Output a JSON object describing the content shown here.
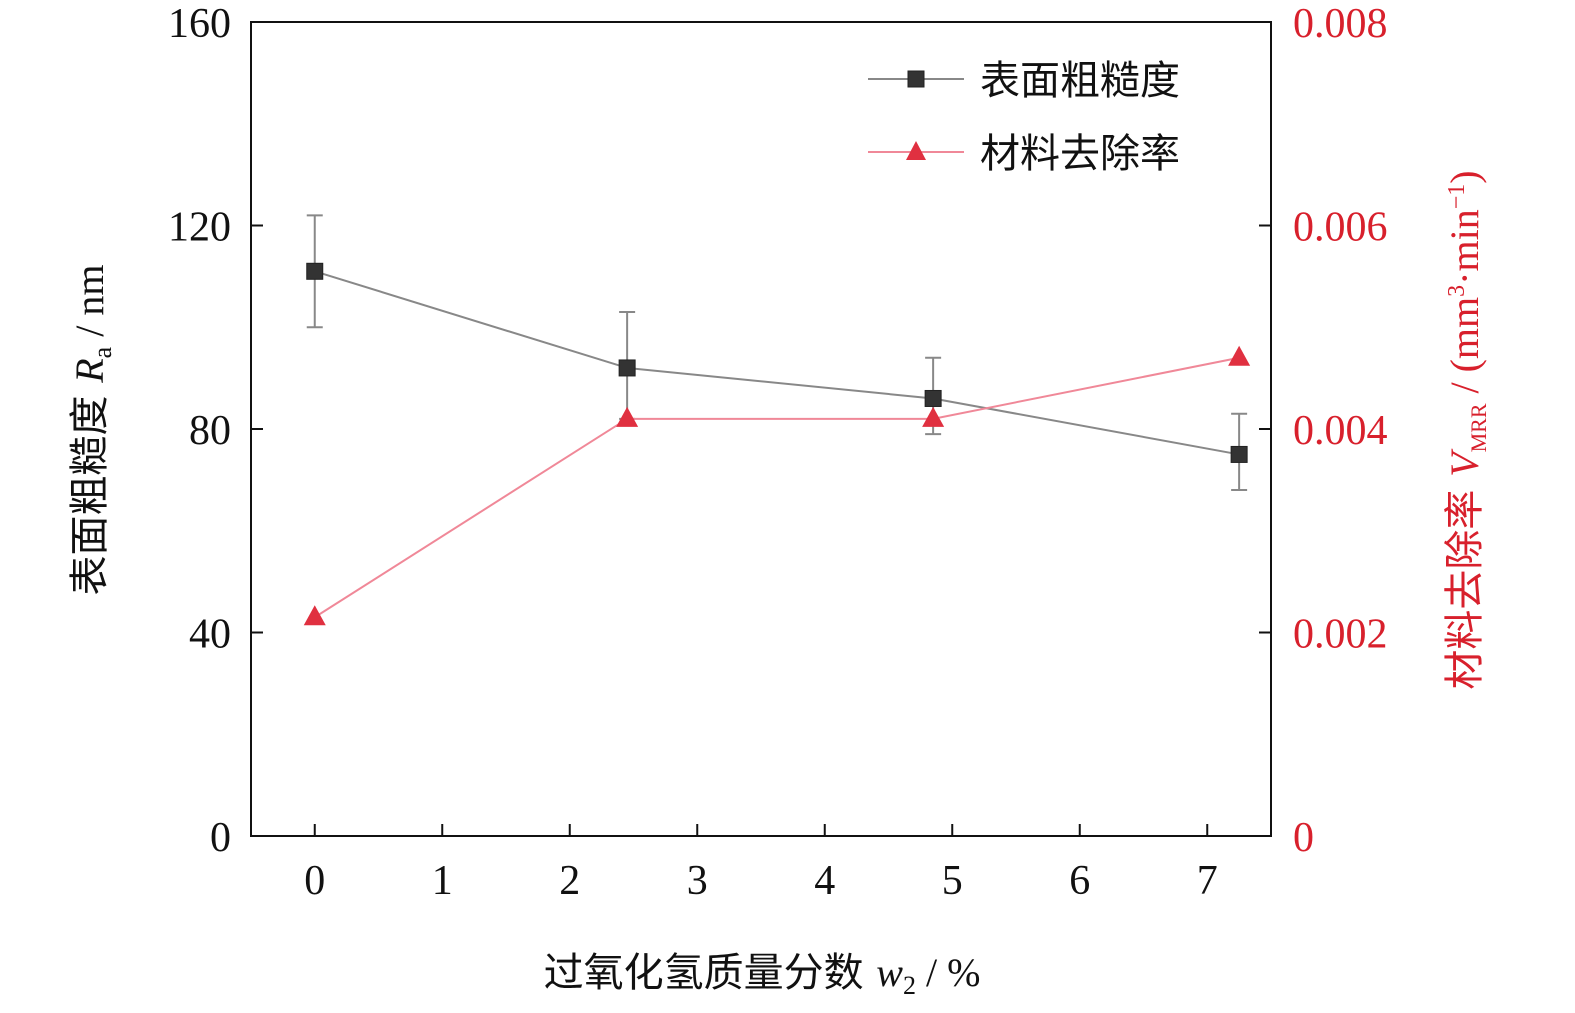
{
  "chart_data": {
    "type": "line",
    "x": [
      0,
      2.45,
      4.85,
      7.25
    ],
    "xlim": [
      -0.5,
      7.5
    ],
    "xticks": [
      "0",
      "1",
      "2",
      "3",
      "4",
      "5",
      "6",
      "7"
    ],
    "xlabel": {
      "main": "过氧化氢质量分数 ",
      "var": "w",
      "sub": "2",
      "unit": " / %"
    },
    "y_left": {
      "lim": [
        0,
        160
      ],
      "ticks": [
        "0",
        "40",
        "80",
        "120",
        "160"
      ],
      "label": {
        "main": "表面粗糙度 ",
        "var": "R",
        "sub": "a",
        "unit": " / nm"
      }
    },
    "y_right": {
      "lim": [
        0,
        0.008
      ],
      "ticks": [
        "0",
        "0.002",
        "0.004",
        "0.006",
        "0.008"
      ],
      "label": {
        "main": "材料去除率 ",
        "var": "V",
        "sub": "MRR",
        "unit_pre": " / (mm",
        "sup1": "3",
        "unit_mid": "·min",
        "sup2": "−1",
        "unit_post": ")"
      }
    },
    "series": [
      {
        "name": "表面粗糙度",
        "axis": "left",
        "marker": "square",
        "color": "#333333",
        "line_color": "#888888",
        "values": [
          111,
          92,
          86,
          75
        ],
        "err_low": [
          100,
          82,
          79,
          68
        ],
        "err_high": [
          122,
          103,
          94,
          83
        ]
      },
      {
        "name": "材料去除率",
        "axis": "right",
        "marker": "triangle",
        "color": "#e03040",
        "line_color": "#f08898",
        "values": [
          0.00215,
          0.0041,
          0.0041,
          0.0047
        ]
      }
    ],
    "legend_position": "top-right",
    "grid": false,
    "colors": {
      "left_axis": "#111111",
      "right_axis": "#d8202c"
    }
  }
}
